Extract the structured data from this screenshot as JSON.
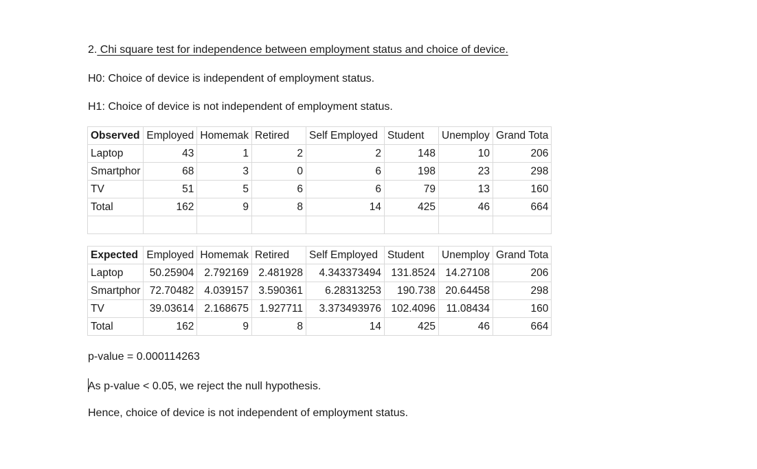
{
  "doc": {
    "heading_num": "2.",
    "heading_text": " Chi square test for independence between employment status and choice of device.",
    "h0": "H0: Choice of device is independent of employment status.",
    "h1": "H1: Choice of device is not independent of employment status.",
    "p_value": "p-value = 0.000114263",
    "conclusion": "As p-value < 0.05, we reject the null hypothesis.",
    "hence": "Hence, choice of device is not independent of employment status."
  },
  "observed": {
    "header": [
      "Observed",
      "Employed",
      "Homemak",
      "Retired",
      "Self Employed",
      "Student",
      "Unemploy",
      "Grand Tota"
    ],
    "rows": [
      [
        "Laptop",
        "43",
        "1",
        "2",
        "2",
        "148",
        "10",
        "206"
      ],
      [
        "Smartphor",
        "68",
        "3",
        "0",
        "6",
        "198",
        "23",
        "298"
      ],
      [
        "TV",
        "51",
        "5",
        "6",
        "6",
        "79",
        "13",
        "160"
      ],
      [
        "Total",
        "162",
        "9",
        "8",
        "14",
        "425",
        "46",
        "664"
      ]
    ]
  },
  "expected": {
    "header": [
      "Expected",
      "Employed",
      "Homemak",
      "Retired",
      "Self Employed",
      "Student",
      "Unemploy",
      "Grand Tota"
    ],
    "rows": [
      [
        "Laptop",
        "50.25904",
        "2.792169",
        "2.481928",
        "4.343373494",
        "131.8524",
        "14.27108",
        "206"
      ],
      [
        "Smartphor",
        "72.70482",
        "4.039157",
        "3.590361",
        "6.28313253",
        "190.738",
        "20.64458",
        "298"
      ],
      [
        "TV",
        "39.03614",
        "2.168675",
        "1.927711",
        "3.373493976",
        "102.4096",
        "11.08434",
        "160"
      ],
      [
        "Total",
        "162",
        "9",
        "8",
        "14",
        "425",
        "46",
        "664"
      ]
    ]
  }
}
